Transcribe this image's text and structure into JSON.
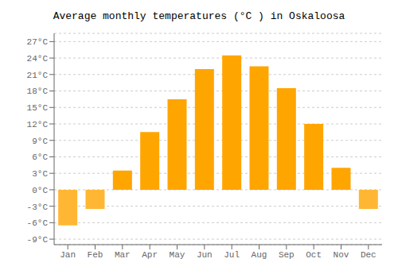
{
  "chart_data": {
    "type": "bar",
    "title": "Average monthly temperatures (°C ) in Oskaloosa",
    "categories": [
      "Jan",
      "Feb",
      "Mar",
      "Apr",
      "May",
      "Jun",
      "Jul",
      "Aug",
      "Sep",
      "Oct",
      "Nov",
      "Dec"
    ],
    "values": [
      -6.5,
      -3.5,
      3.5,
      10.5,
      16.5,
      22.0,
      24.5,
      22.5,
      18.5,
      12.0,
      4.0,
      -3.5
    ],
    "colors": [
      "#FFB733",
      "#FFB733",
      "#FFA500",
      "#FFA500",
      "#FFA500",
      "#FFA500",
      "#FFA500",
      "#FFA500",
      "#FFA500",
      "#FFA500",
      "#FFA500",
      "#FFB733"
    ],
    "ylim": [
      -10,
      28.5
    ],
    "yticks": [
      {
        "value": -9,
        "label": "-9°C"
      },
      {
        "value": -6,
        "label": "-6°C"
      },
      {
        "value": -3,
        "label": "-3°C"
      },
      {
        "value": 0,
        "label": "0°C"
      },
      {
        "value": 3,
        "label": "3°C"
      },
      {
        "value": 6,
        "label": "6°C"
      },
      {
        "value": 9,
        "label": "9°C"
      },
      {
        "value": 12,
        "label": "12°C"
      },
      {
        "value": 15,
        "label": "15°C"
      },
      {
        "value": 18,
        "label": "18°C"
      },
      {
        "value": 21,
        "label": "21°C"
      },
      {
        "value": 24,
        "label": "24°C"
      },
      {
        "value": 27,
        "label": "27°C"
      }
    ],
    "grid": true
  }
}
